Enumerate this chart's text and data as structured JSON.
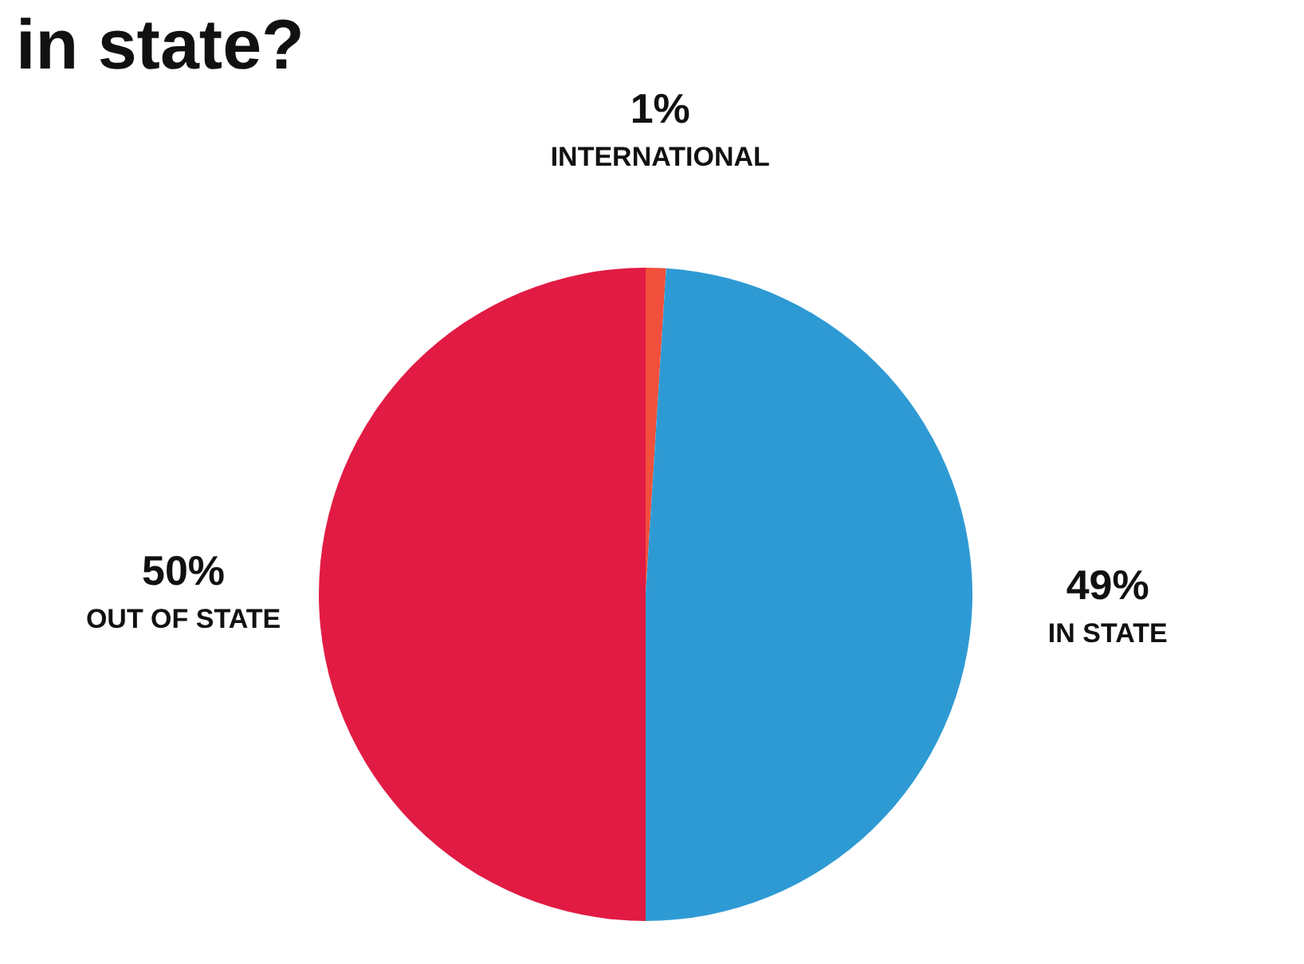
{
  "chart_data": {
    "type": "pie",
    "title": "in state?",
    "categories": [
      "INTERNATIONAL",
      "IN STATE",
      "OUT OF STATE"
    ],
    "values": [
      1,
      49,
      50
    ],
    "colors": [
      "#f0503c",
      "#2e9ad4",
      "#e11b43"
    ],
    "value_labels": [
      "1%",
      "49%",
      "50%"
    ],
    "legend": false
  }
}
